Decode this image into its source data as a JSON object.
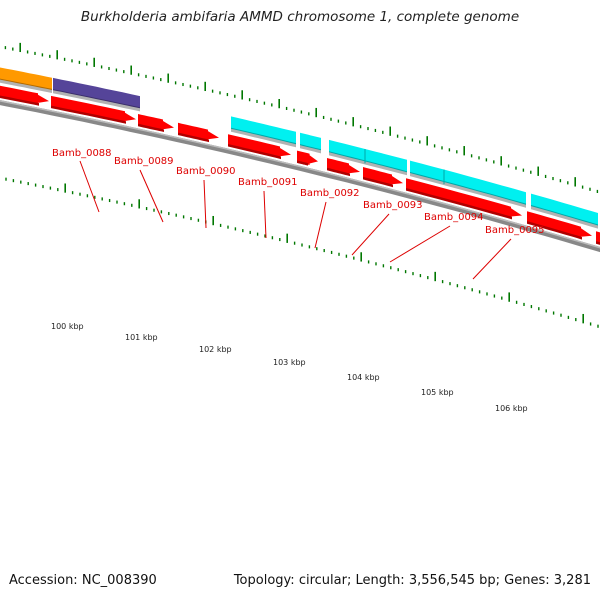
{
  "title": "Burkholderia ambifaria AMMD chromosome 1, complete genome",
  "footer": {
    "accession_label": "Accession:",
    "accession": "NC_008390",
    "topology_label": "Topology:",
    "topology": "circular",
    "length_label": "Length:",
    "length": "3,556,545 bp",
    "genes_label": "Genes:",
    "genes": "3,281"
  },
  "colors": {
    "cds": "#ff0000",
    "cds_dark": "#b00000",
    "cyan": "#00f0f0",
    "cyan_dark": "#00a8a8",
    "orange": "#ff9900",
    "purple": "#554499",
    "backbone": "#888888",
    "tick": "#007700",
    "label": "#dd0000"
  },
  "gene_labels": [
    "Bamb_0088",
    "Bamb_0089",
    "Bamb_0090",
    "Bamb_0091",
    "Bamb_0092",
    "Bamb_0093",
    "Bamb_0094",
    "Bamb_0095"
  ],
  "kbp_labels": [
    "100 kbp",
    "101 kbp",
    "102 kbp",
    "103 kbp",
    "104 kbp",
    "105 kbp",
    "106 kbp"
  ]
}
